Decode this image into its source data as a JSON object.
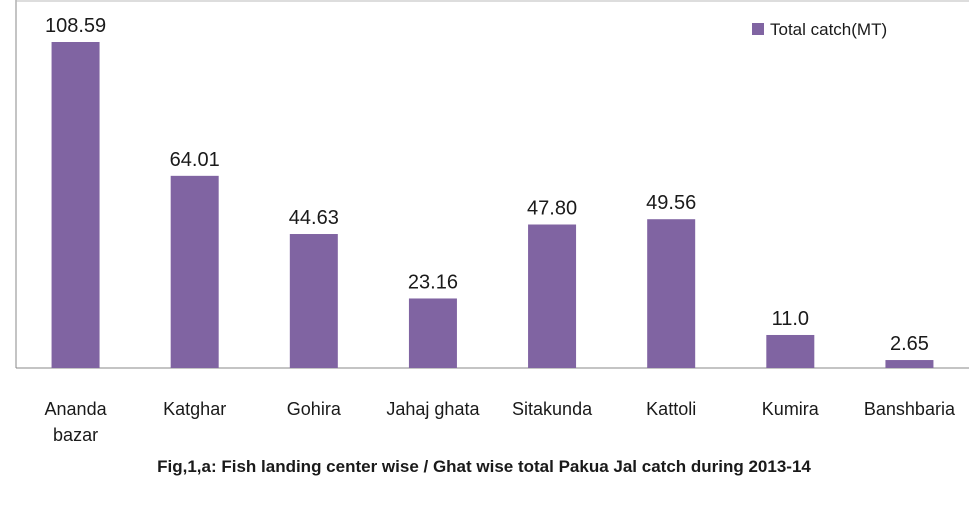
{
  "chart_data": {
    "type": "bar",
    "title": "Fig,1,a: Fish landing center wise / Ghat wise total  Pakua Jal catch during 2013-14",
    "categories": [
      "Ananda bazar",
      "Katghar",
      "Gohira",
      "Jahaj ghata",
      "Sitakunda",
      "Kattoli",
      "Kumira",
      "Banshbaria"
    ],
    "series": [
      {
        "name": "Total catch(MT)",
        "color": "#8064a2",
        "values": [
          108.59,
          64.01,
          44.63,
          23.16,
          47.8,
          49.56,
          11.0,
          2.65
        ],
        "value_labels": [
          "108.59",
          "64.01",
          "44.63",
          "23.16",
          "47.80",
          "49.56",
          "11.0",
          "2.65"
        ]
      }
    ],
    "legend": "top-right"
  }
}
